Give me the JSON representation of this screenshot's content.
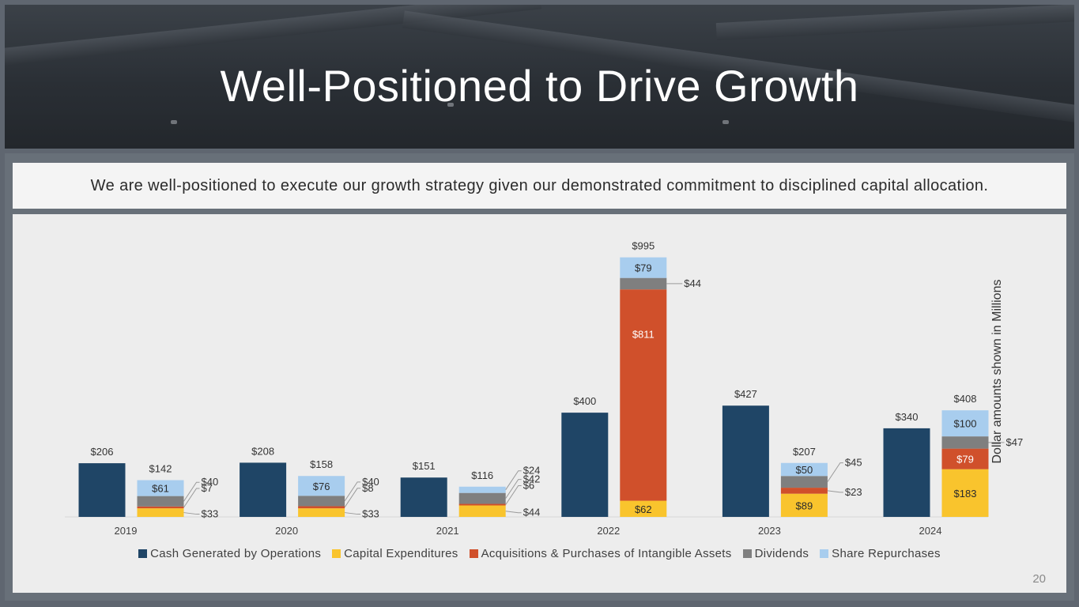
{
  "slide": {
    "title": "Well-Positioned to Drive Growth",
    "banner": "We are well-positioned to execute our growth strategy given our demonstrated commitment to disciplined capital allocation.",
    "page_number": "20",
    "axis_note": "Dollar amounts shown in Millions"
  },
  "colors": {
    "cash": "#1f4566",
    "capex": "#f9c42d",
    "acq": "#d0502b",
    "div": "#7f7f7f",
    "rep": "#a8cdee"
  },
  "chart_data": {
    "type": "bar",
    "categories": [
      "2019",
      "2020",
      "2021",
      "2022",
      "2023",
      "2024"
    ],
    "ylim": [
      0,
      1000
    ],
    "series": [
      {
        "key": "cash",
        "name": "Cash Generated by Operations",
        "values": [
          206,
          208,
          151,
          400,
          427,
          340
        ],
        "labels": [
          "$206",
          "$208",
          "$151",
          "$400",
          "$427",
          "$340"
        ]
      },
      {
        "key": "capex",
        "name": "Capital Expenditures",
        "values": [
          33,
          33,
          44,
          62,
          89,
          183
        ],
        "labels": [
          "$33",
          "$33",
          "$44",
          "$62",
          "$89",
          "$183"
        ]
      },
      {
        "key": "acq",
        "name": "Acquisitions & Purchases of Intangible Assets",
        "values": [
          7,
          8,
          6,
          811,
          23,
          79
        ],
        "labels": [
          "$7",
          "$8",
          "$6",
          "$811",
          "$23",
          "$79"
        ]
      },
      {
        "key": "div",
        "name": "Dividends",
        "values": [
          40,
          40,
          42,
          44,
          45,
          47
        ],
        "labels": [
          "$40",
          "$40",
          "$42",
          "$44",
          "$45",
          "$47"
        ]
      },
      {
        "key": "rep",
        "name": "Share Repurchases",
        "values": [
          61,
          76,
          24,
          79,
          50,
          100
        ],
        "labels": [
          "$61",
          "$76",
          "$24",
          "$79",
          "$50",
          "$100"
        ]
      }
    ],
    "stack_totals": [
      "$142",
      "$158",
      "$116",
      "$995",
      "$207",
      "$408"
    ],
    "legend_position": "bottom"
  }
}
